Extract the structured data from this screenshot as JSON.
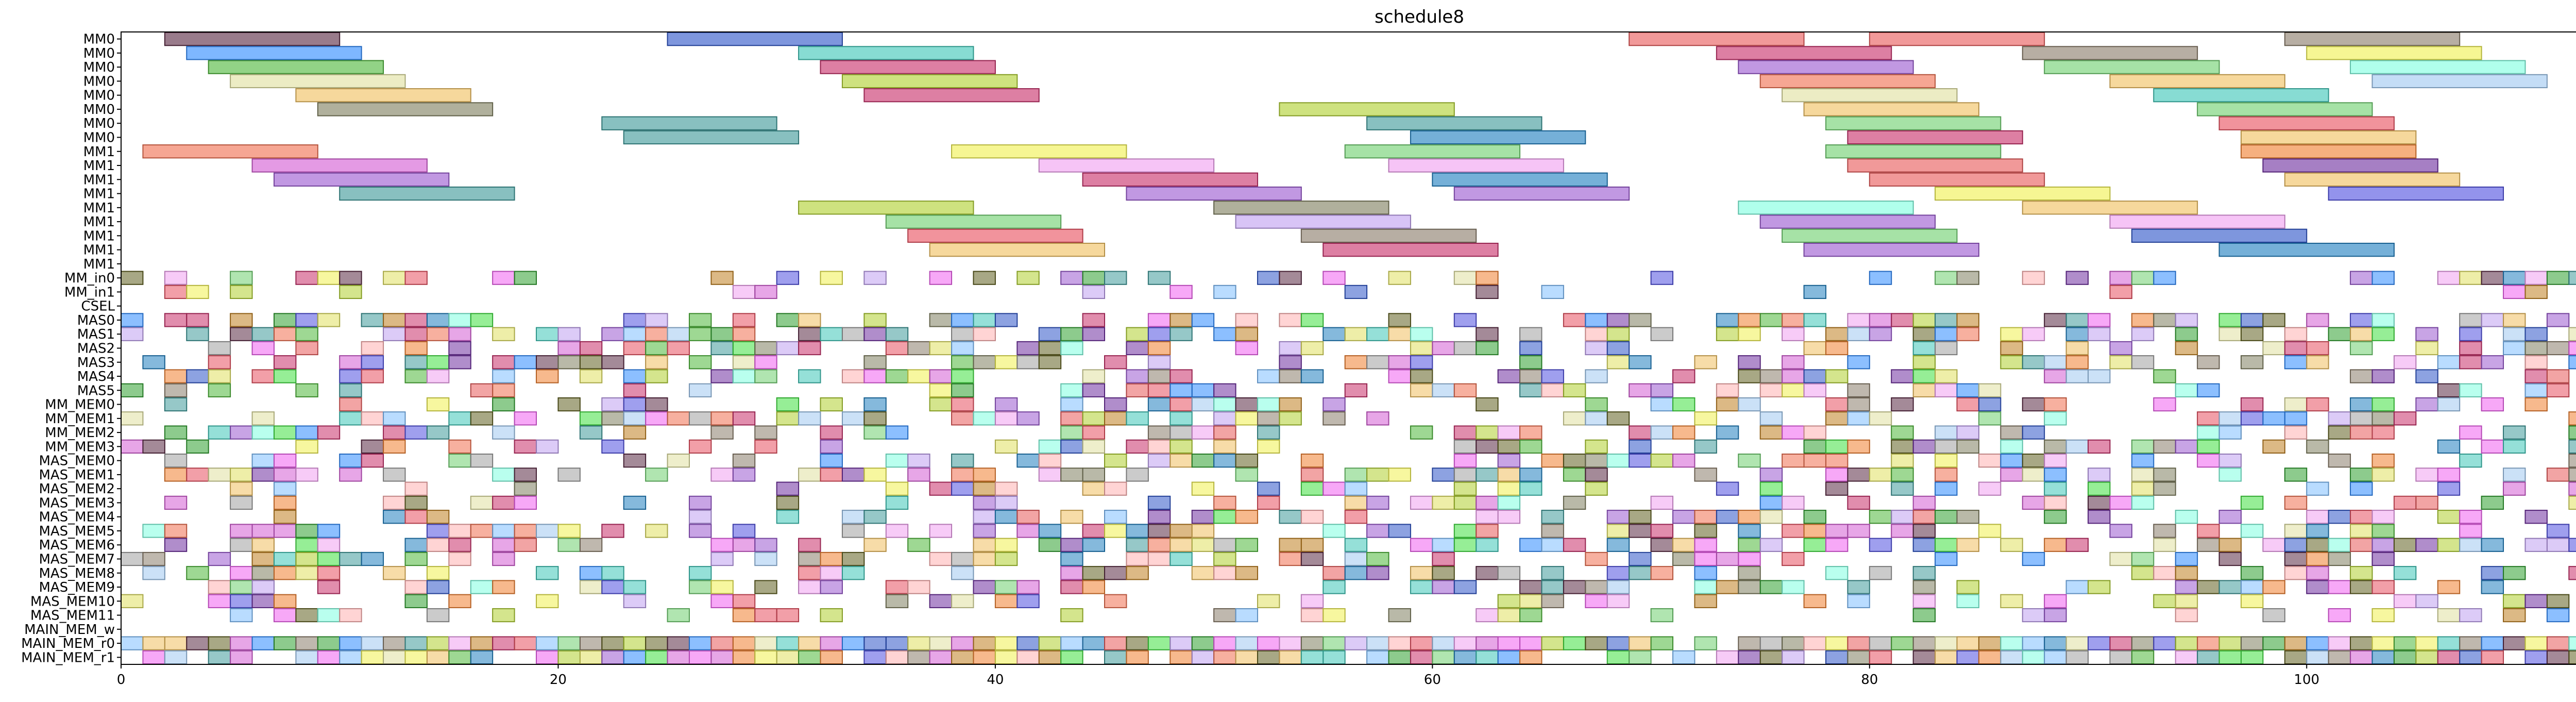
{
  "chart_data": {
    "type": "gantt",
    "title": "schedule8",
    "xlim": [
      0,
      116
    ],
    "xticks": [
      0,
      20,
      40,
      60,
      80,
      100
    ],
    "rows": [
      "MM0",
      "MM0",
      "MM0",
      "MM0",
      "MM0",
      "MM0",
      "MM0",
      "MM0",
      "MM1",
      "MM1",
      "MM1",
      "MM1",
      "MM1",
      "MM1",
      "MM1",
      "MM1",
      "MM1",
      "MM_in0",
      "MM_in1",
      "CSEL",
      "MAS0",
      "MAS1",
      "MAS2",
      "MAS3",
      "MAS4",
      "MAS5",
      "MM_MEM0",
      "MM_MEM1",
      "MM_MEM2",
      "MM_MEM3",
      "MAS_MEM0",
      "MAS_MEM1",
      "MAS_MEM2",
      "MAS_MEM3",
      "MAS_MEM4",
      "MAS_MEM5",
      "MAS_MEM6",
      "MAS_MEM7",
      "MAS_MEM8",
      "MAS_MEM9",
      "MAS_MEM10",
      "MAS_MEM11",
      "MAIN_MEM_w",
      "MAIN_MEM_r0",
      "MAIN_MEM_r1"
    ],
    "palette": [
      "#5a2a44",
      "#2f55c8",
      "#3ec6b8",
      "#e85a5a",
      "#8b7d6b",
      "#2e8bff",
      "#c8306a",
      "#d45cd4",
      "#4fb83b",
      "#f0c060",
      "#b0d030",
      "#9b59d0",
      "#e0e0a0",
      "#a0c8f0",
      "#70d070",
      "#3f9a9a",
      "#e85060",
      "#808060",
      "#f07050",
      "#f0f050",
      "#f0a0f0",
      "#7030a0",
      "#5050e0",
      "#e0e060",
      "#c0a0f0",
      "#f08030",
      "#80ffe0",
      "#30a030",
      "#f060f0",
      "#a0a0a0",
      "#2080c0",
      "#ffb0b0",
      "#606020",
      "#c08020",
      "#80c0ff",
      "#40e040"
    ],
    "long_tasks": [
      {
        "row": 0,
        "tasks": [
          [
            2,
            10,
            0
          ],
          [
            25,
            33,
            1
          ],
          [
            69,
            77,
            3
          ],
          [
            80,
            88,
            3
          ],
          [
            99,
            107,
            4
          ]
        ]
      },
      {
        "row": 1,
        "tasks": [
          [
            3,
            11,
            5
          ],
          [
            31,
            39,
            2
          ],
          [
            73,
            81,
            6
          ],
          [
            87,
            95,
            4
          ],
          [
            100,
            108,
            19
          ]
        ]
      },
      {
        "row": 2,
        "tasks": [
          [
            4,
            12,
            8
          ],
          [
            32,
            40,
            6
          ],
          [
            74,
            82,
            11
          ],
          [
            88,
            96,
            14
          ],
          [
            102,
            110,
            26
          ]
        ]
      },
      {
        "row": 3,
        "tasks": [
          [
            5,
            13,
            12
          ],
          [
            33,
            41,
            10
          ],
          [
            75,
            83,
            18
          ],
          [
            91,
            99,
            9
          ],
          [
            103,
            111,
            13
          ]
        ]
      },
      {
        "row": 4,
        "tasks": [
          [
            8,
            16,
            9
          ],
          [
            34,
            42,
            6
          ],
          [
            76,
            84,
            12
          ],
          [
            93,
            101,
            2
          ]
        ]
      },
      {
        "row": 5,
        "tasks": [
          [
            9,
            17,
            17
          ],
          [
            53,
            61,
            10
          ],
          [
            77,
            85,
            9
          ],
          [
            95,
            103,
            14
          ]
        ]
      },
      {
        "row": 6,
        "tasks": [
          [
            22,
            30,
            15
          ],
          [
            57,
            65,
            15
          ],
          [
            78,
            86,
            14
          ],
          [
            96,
            104,
            16
          ]
        ]
      },
      {
        "row": 7,
        "tasks": [
          [
            23,
            31,
            15
          ],
          [
            59,
            67,
            30
          ],
          [
            79,
            87,
            6
          ],
          [
            97,
            105,
            9
          ]
        ]
      },
      {
        "row": 8,
        "tasks": [
          [
            1,
            9,
            18
          ],
          [
            38,
            46,
            19
          ],
          [
            56,
            64,
            14
          ],
          [
            78,
            86,
            14
          ],
          [
            97,
            105,
            25
          ]
        ]
      },
      {
        "row": 9,
        "tasks": [
          [
            6,
            14,
            7
          ],
          [
            42,
            50,
            20
          ],
          [
            58,
            66,
            20
          ],
          [
            79,
            87,
            3
          ],
          [
            98,
            106,
            21
          ]
        ]
      },
      {
        "row": 10,
        "tasks": [
          [
            7,
            15,
            11
          ],
          [
            44,
            52,
            6
          ],
          [
            60,
            68,
            30
          ],
          [
            80,
            88,
            3
          ],
          [
            99,
            107,
            9
          ]
        ]
      },
      {
        "row": 11,
        "tasks": [
          [
            10,
            18,
            15
          ],
          [
            46,
            54,
            11
          ],
          [
            61,
            69,
            11
          ],
          [
            83,
            91,
            19
          ],
          [
            101,
            109,
            22
          ]
        ]
      },
      {
        "row": 12,
        "tasks": [
          [
            31,
            39,
            10
          ],
          [
            50,
            58,
            17
          ],
          [
            74,
            82,
            26
          ],
          [
            87,
            95,
            9
          ]
        ]
      },
      {
        "row": 13,
        "tasks": [
          [
            35,
            43,
            14
          ],
          [
            51,
            59,
            24
          ],
          [
            75,
            83,
            11
          ],
          [
            91,
            99,
            20
          ]
        ]
      },
      {
        "row": 14,
        "tasks": [
          [
            36,
            44,
            16
          ],
          [
            54,
            62,
            4
          ],
          [
            76,
            84,
            14
          ],
          [
            92,
            100,
            1
          ]
        ]
      },
      {
        "row": 15,
        "tasks": [
          [
            37,
            45,
            9
          ],
          [
            55,
            63,
            6
          ],
          [
            77,
            85,
            11
          ],
          [
            96,
            104,
            30
          ]
        ]
      }
    ],
    "cell_width": 1,
    "seed": 8
  }
}
